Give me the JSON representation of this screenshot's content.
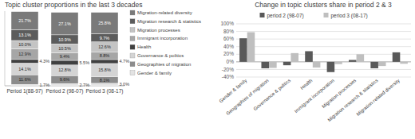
{
  "chart_data": [
    {
      "type": "bar",
      "stacked": true,
      "title": "Topic cluster proportions in the last 3 decades",
      "categories": [
        "Period 1(88-97)",
        "Period 2 (98-07)",
        "Period 3 (08-17)"
      ],
      "series": [
        {
          "name": "Gender & family",
          "color": "#e3e3e3",
          "values": [
            1.7,
            2.7,
            3.0
          ],
          "value_labels": [
            "1.7%",
            "2.7%",
            "3.0%"
          ]
        },
        {
          "name": "Geographies of migration",
          "color": "#8c8c8c",
          "values": [
            11.6,
            9.6,
            8.1
          ],
          "value_labels": [
            "11.6%",
            "9.6%",
            "8.1%"
          ]
        },
        {
          "name": "Governance & politics",
          "color": "#d4d4d4",
          "values": [
            14.1,
            12.8,
            15.8
          ],
          "value_labels": [
            "14.1%",
            "12.8%",
            "15.8%"
          ]
        },
        {
          "name": "Health",
          "color": "#404040",
          "values": [
            4.3,
            5.5,
            4.7
          ],
          "value_labels": [
            "4.3%",
            "5.5%",
            "4.7%"
          ]
        },
        {
          "name": "Immigrant incorporation",
          "color": "#a6a6a6",
          "values": [
            12.9,
            9.4,
            8.8
          ],
          "value_labels": [
            "12.9%",
            "9.4%",
            "8.8%"
          ]
        },
        {
          "name": "Migration processes",
          "color": "#c4c4c4",
          "values": [
            10.0,
            10.5,
            12.6
          ],
          "value_labels": [
            "10.0%",
            "10.5%",
            "12.6%"
          ]
        },
        {
          "name": "Migration research & statistics",
          "color": "#5c5c5c",
          "values": [
            13.1,
            10.9,
            9.7
          ],
          "value_labels": [
            "13.1%",
            "10.9%",
            "9.7%"
          ]
        },
        {
          "name": "Migration-related diversity",
          "color": "#7a7a7a",
          "values": [
            21.7,
            27.1,
            25.8
          ],
          "value_labels": [
            "21.7%",
            "27.1%",
            "25.8%"
          ]
        }
      ],
      "ylim": [
        0,
        90
      ],
      "data_labels": true,
      "tick_labels": "x",
      "legend": "right"
    },
    {
      "type": "bar",
      "title": "Change in topic clusters share in period 2 & 3",
      "categories": [
        "Gender & family",
        "Geographies of migration",
        "Governance & politics",
        "Health",
        "Immigrant incorporation",
        "Migration processes",
        "Migration research & statistics",
        "Migration-related diversity"
      ],
      "series": [
        {
          "name": "period 2 (98-07)",
          "color": "#595959",
          "values": [
            62,
            -17,
            -9,
            28,
            -27,
            5,
            -17,
            25
          ]
        },
        {
          "name": "period 3 (08-17)",
          "color": "#bfbfbf",
          "values": [
            78,
            -16,
            23,
            -15,
            -6,
            20,
            -11,
            -5
          ]
        }
      ],
      "ylim": [
        -40,
        100
      ],
      "yticks": [
        {
          "value": -40,
          "label": "-40%"
        },
        {
          "value": -20,
          "label": "-20%"
        },
        {
          "value": 0,
          "label": "0%"
        },
        {
          "value": 20,
          "label": "20%"
        },
        {
          "value": 40,
          "label": "40%"
        },
        {
          "value": 60,
          "label": "60%"
        },
        {
          "value": 80,
          "label": "80%"
        },
        {
          "value": 100,
          "label": "100%"
        }
      ],
      "grid": true,
      "legend": "top"
    }
  ]
}
